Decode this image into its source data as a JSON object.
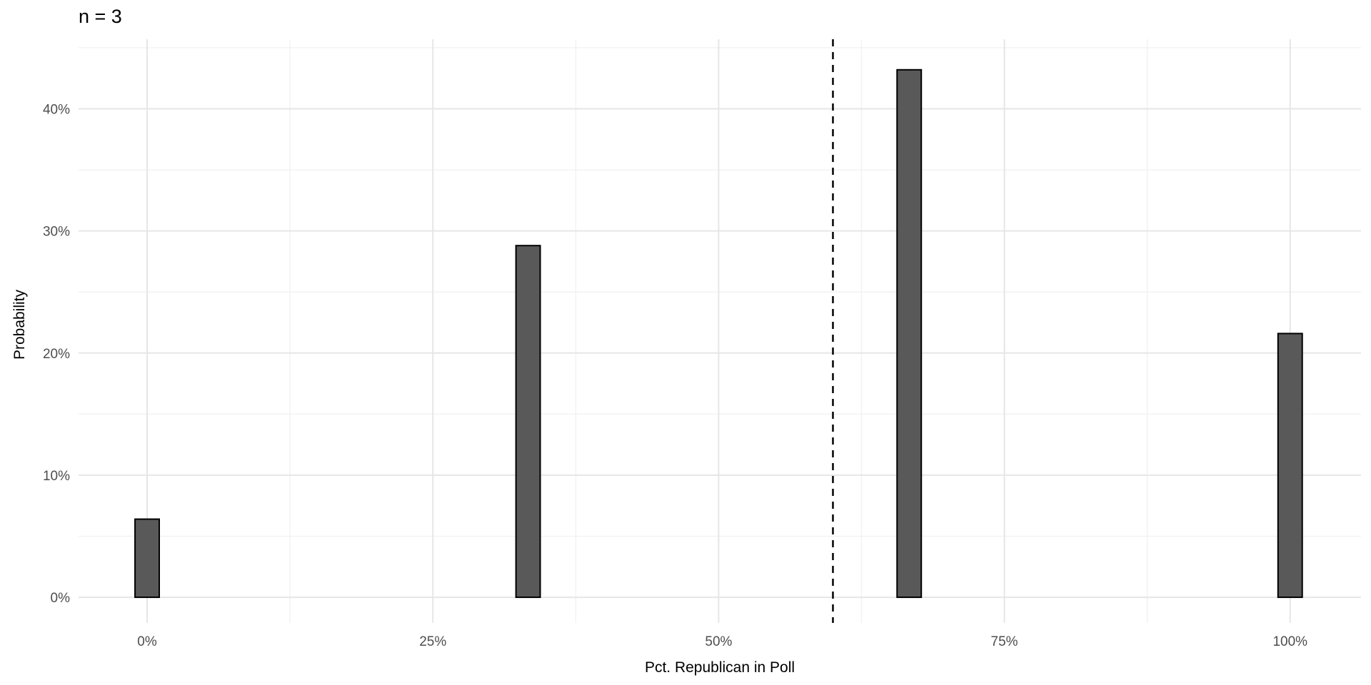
{
  "chart_data": {
    "type": "bar",
    "title": "n = 3",
    "xlabel": "Pct. Republican in Poll",
    "ylabel": "Probability",
    "x": [
      0,
      0.3333,
      0.6667,
      1
    ],
    "values": [
      0.064,
      0.288,
      0.432,
      0.216
    ],
    "bar_width": 0.0212,
    "vline_x": 0.6,
    "vline_style": "dashed",
    "x_tick_values": [
      0,
      0.25,
      0.5,
      0.75,
      1
    ],
    "x_tick_labels": [
      "0%",
      "25%",
      "50%",
      "75%",
      "100%"
    ],
    "y_tick_values": [
      0,
      0.1,
      0.2,
      0.3,
      0.4
    ],
    "y_tick_labels": [
      "0%",
      "10%",
      "20%",
      "30%",
      "40%"
    ],
    "xlim": [
      -0.06,
      1.062
    ],
    "ylim": [
      -0.021,
      0.457
    ],
    "grid": true,
    "legend": "none",
    "colors": {
      "background": "#FFFFFF",
      "bar_fill": "#595959",
      "bar_stroke": "#000000",
      "grid_major": "#E6E6E6",
      "grid_minor": "#F2F2F2",
      "tick_label": "#4D4D4D",
      "axis_text": "#000000",
      "vline": "#000000"
    }
  }
}
